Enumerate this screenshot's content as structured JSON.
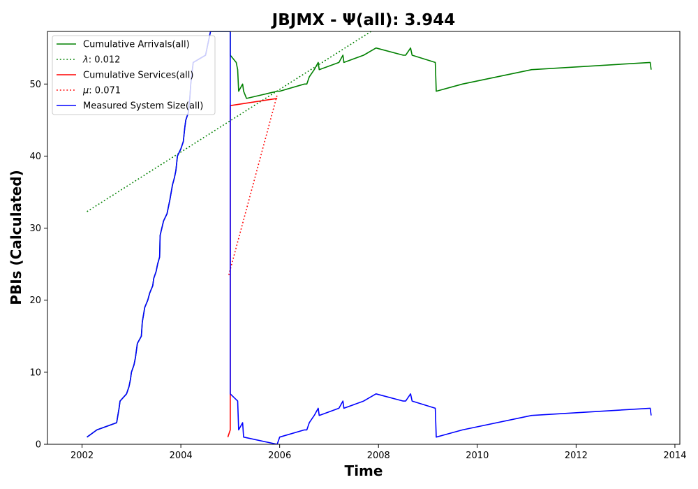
{
  "chart_data": {
    "type": "line",
    "title": "JBJMX -  Ψ(all): 3.944",
    "xlabel": "Time",
    "ylabel": "PBIs (Calculated)",
    "xlim": [
      2001.3,
      2014.1
    ],
    "ylim": [
      0,
      57.3
    ],
    "x_ticks": [
      2002,
      2004,
      2006,
      2008,
      2010,
      2012,
      2014
    ],
    "y_ticks": [
      0,
      10,
      20,
      30,
      40,
      50
    ],
    "grid": false,
    "legend_position": "upper-left",
    "series": [
      {
        "name": "Cumulative Arrivals(all)",
        "color": "#008000",
        "style": "solid",
        "points": [
          [
            2002.1,
            1
          ],
          [
            2002.3,
            2
          ],
          [
            2002.7,
            3
          ],
          [
            2002.75,
            5
          ],
          [
            2002.77,
            6
          ],
          [
            2002.9,
            7
          ],
          [
            2002.95,
            8
          ],
          [
            2002.98,
            9
          ],
          [
            2003.0,
            10
          ],
          [
            2003.05,
            11
          ],
          [
            2003.08,
            12
          ],
          [
            2003.1,
            13
          ],
          [
            2003.12,
            14
          ],
          [
            2003.2,
            15
          ],
          [
            2003.22,
            17
          ],
          [
            2003.27,
            19
          ],
          [
            2003.33,
            20
          ],
          [
            2003.37,
            21
          ],
          [
            2003.43,
            22
          ],
          [
            2003.45,
            23
          ],
          [
            2003.5,
            24
          ],
          [
            2003.53,
            25
          ],
          [
            2003.57,
            26
          ],
          [
            2003.58,
            29
          ],
          [
            2003.65,
            31
          ],
          [
            2003.72,
            32
          ],
          [
            2003.78,
            34
          ],
          [
            2003.83,
            36
          ],
          [
            2003.87,
            37
          ],
          [
            2003.9,
            38
          ],
          [
            2003.93,
            40
          ],
          [
            2004.0,
            41
          ],
          [
            2004.05,
            42
          ],
          [
            2004.08,
            44
          ],
          [
            2004.1,
            45
          ],
          [
            2004.15,
            46
          ],
          [
            2004.18,
            48
          ],
          [
            2004.2,
            50
          ],
          [
            2004.25,
            53
          ],
          [
            2004.5,
            54
          ],
          [
            2004.6,
            57.3
          ],
          [
            2005.0,
            57.3
          ],
          [
            2005.0,
            54
          ],
          [
            2005.12,
            53
          ],
          [
            2005.15,
            52
          ],
          [
            2005.17,
            49
          ],
          [
            2005.25,
            50
          ],
          [
            2005.27,
            49
          ],
          [
            2005.33,
            48
          ],
          [
            2005.95,
            49
          ],
          [
            2006.0,
            49
          ],
          [
            2006.5,
            50
          ],
          [
            2006.55,
            50
          ],
          [
            2006.6,
            51
          ],
          [
            2006.7,
            52
          ],
          [
            2006.78,
            53
          ],
          [
            2006.8,
            52
          ],
          [
            2007.2,
            53
          ],
          [
            2007.28,
            54
          ],
          [
            2007.3,
            53
          ],
          [
            2007.7,
            54
          ],
          [
            2007.95,
            55
          ],
          [
            2008.5,
            54
          ],
          [
            2008.55,
            54
          ],
          [
            2008.65,
            55
          ],
          [
            2008.68,
            54
          ],
          [
            2009.15,
            53
          ],
          [
            2009.17,
            49
          ],
          [
            2009.7,
            50
          ],
          [
            2011.1,
            52
          ],
          [
            2013.5,
            53
          ],
          [
            2013.52,
            52
          ]
        ]
      },
      {
        "name": "λ: 0.012",
        "legend_prefix": "λ",
        "legend_value": ": 0.012",
        "color": "#008000",
        "style": "dotted",
        "points": [
          [
            2002.1,
            32.3
          ],
          [
            2007.85,
            57.3
          ]
        ]
      },
      {
        "name": "Cumulative Services(all)",
        "color": "#ff0000",
        "style": "solid",
        "points": [
          [
            2004.95,
            1
          ],
          [
            2005.0,
            2
          ],
          [
            2005.0,
            47
          ],
          [
            2005.95,
            48
          ]
        ]
      },
      {
        "name": "μ: 0.071",
        "legend_prefix": "μ",
        "legend_value": ": 0.071",
        "color": "#ff0000",
        "style": "dotted",
        "points": [
          [
            2004.97,
            23.5
          ],
          [
            2005.95,
            48.5
          ]
        ]
      },
      {
        "name": "Measured System Size(all)",
        "color": "#0000ff",
        "style": "solid",
        "points": [
          [
            2002.1,
            1
          ],
          [
            2002.3,
            2
          ],
          [
            2002.7,
            3
          ],
          [
            2002.75,
            5
          ],
          [
            2002.77,
            6
          ],
          [
            2002.9,
            7
          ],
          [
            2002.95,
            8
          ],
          [
            2002.98,
            9
          ],
          [
            2003.0,
            10
          ],
          [
            2003.05,
            11
          ],
          [
            2003.08,
            12
          ],
          [
            2003.1,
            13
          ],
          [
            2003.12,
            14
          ],
          [
            2003.2,
            15
          ],
          [
            2003.22,
            17
          ],
          [
            2003.27,
            19
          ],
          [
            2003.33,
            20
          ],
          [
            2003.37,
            21
          ],
          [
            2003.43,
            22
          ],
          [
            2003.45,
            23
          ],
          [
            2003.5,
            24
          ],
          [
            2003.53,
            25
          ],
          [
            2003.57,
            26
          ],
          [
            2003.58,
            29
          ],
          [
            2003.65,
            31
          ],
          [
            2003.72,
            32
          ],
          [
            2003.78,
            34
          ],
          [
            2003.83,
            36
          ],
          [
            2003.87,
            37
          ],
          [
            2003.9,
            38
          ],
          [
            2003.93,
            40
          ],
          [
            2004.0,
            41
          ],
          [
            2004.05,
            42
          ],
          [
            2004.08,
            44
          ],
          [
            2004.1,
            45
          ],
          [
            2004.15,
            46
          ],
          [
            2004.18,
            48
          ],
          [
            2004.2,
            50
          ],
          [
            2004.25,
            53
          ],
          [
            2004.5,
            54
          ],
          [
            2004.6,
            57.3
          ],
          [
            2005.0,
            57.3
          ],
          [
            2005.0,
            7
          ],
          [
            2005.15,
            6
          ],
          [
            2005.17,
            2
          ],
          [
            2005.25,
            3
          ],
          [
            2005.27,
            1
          ],
          [
            2005.95,
            0
          ],
          [
            2006.0,
            1
          ],
          [
            2006.5,
            2
          ],
          [
            2006.55,
            2
          ],
          [
            2006.6,
            3
          ],
          [
            2006.7,
            4
          ],
          [
            2006.78,
            5
          ],
          [
            2006.8,
            4
          ],
          [
            2007.2,
            5
          ],
          [
            2007.28,
            6
          ],
          [
            2007.3,
            5
          ],
          [
            2007.7,
            6
          ],
          [
            2007.95,
            7
          ],
          [
            2008.5,
            6
          ],
          [
            2008.55,
            6
          ],
          [
            2008.65,
            7
          ],
          [
            2008.68,
            6
          ],
          [
            2009.15,
            5
          ],
          [
            2009.17,
            1
          ],
          [
            2009.7,
            2
          ],
          [
            2011.1,
            4
          ],
          [
            2013.5,
            5
          ],
          [
            2013.52,
            4
          ]
        ]
      }
    ]
  }
}
